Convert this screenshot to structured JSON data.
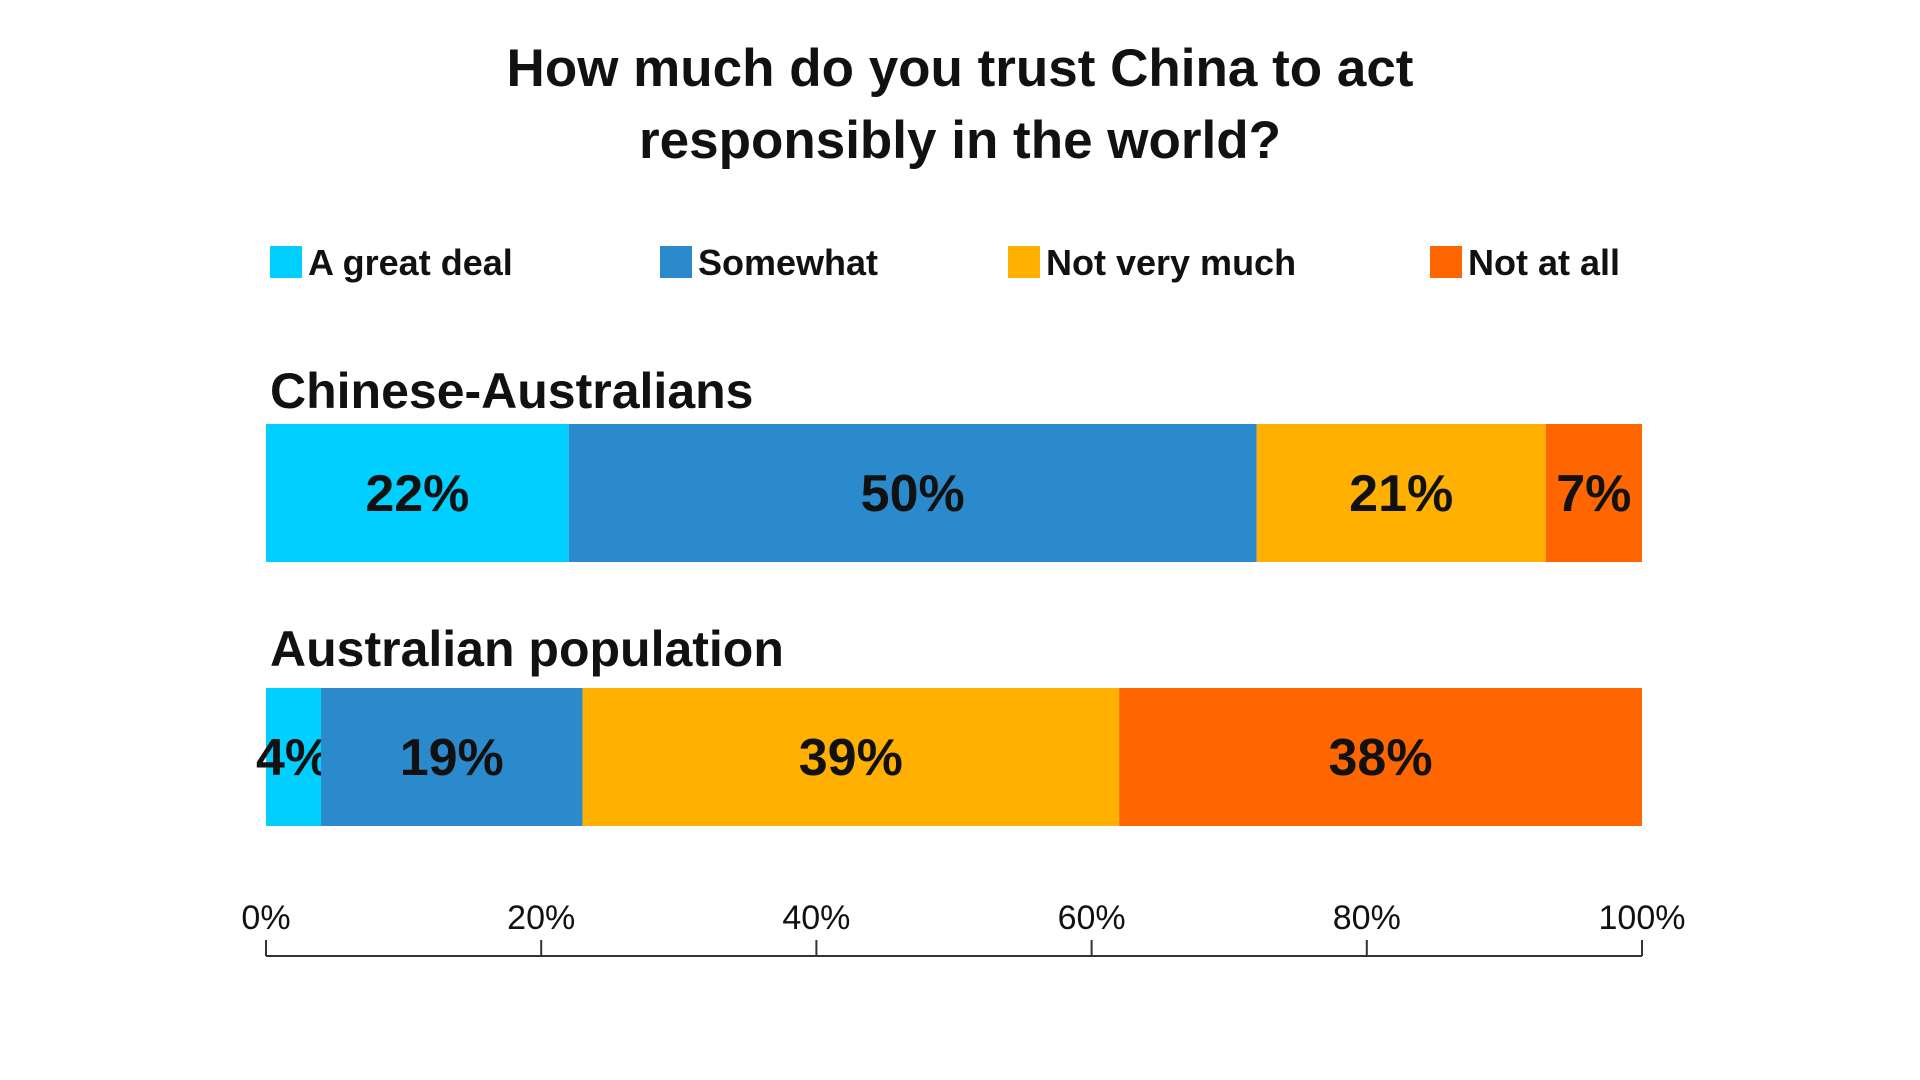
{
  "chart_data": {
    "type": "bar",
    "orientation": "horizontal",
    "stacked": true,
    "title_lines": [
      "How much do you trust China to act",
      "responsibly in the world?"
    ],
    "categories": [
      "Chinese-Australians",
      "Australian population"
    ],
    "series": [
      {
        "name": "A great deal",
        "color": "#00cfff",
        "values": [
          22,
          4
        ]
      },
      {
        "name": "Somewhat",
        "color": "#2a8acb",
        "values": [
          50,
          19
        ]
      },
      {
        "name": "Not very much",
        "color": "#ffb000",
        "values": [
          21,
          39
        ]
      },
      {
        "name": "Not at all",
        "color": "#ff6600",
        "values": [
          7,
          38
        ]
      }
    ],
    "value_labels": [
      [
        "22%",
        "50%",
        "21%",
        "7%"
      ],
      [
        "4%",
        "19%",
        "39%",
        "38%"
      ]
    ],
    "xlim": [
      0,
      100
    ],
    "xticks": [
      0,
      20,
      40,
      60,
      80,
      100
    ],
    "xtick_labels": [
      "0%",
      "20%",
      "40%",
      "60%",
      "80%",
      "100%"
    ],
    "legend_position": "top",
    "grid": false
  }
}
